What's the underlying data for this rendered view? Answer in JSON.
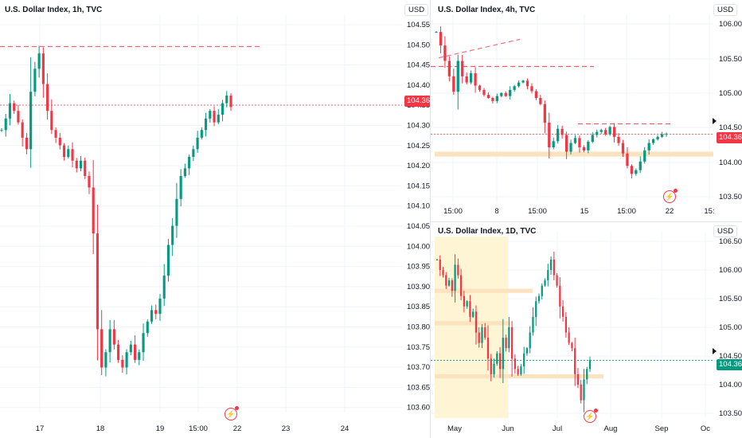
{
  "colors": {
    "up": "#089981",
    "down": "#f23645",
    "grid": "#f0f3fa",
    "zone": "#fbe3bf",
    "zone_light": "#fdf5d4",
    "level": "#f23645"
  },
  "panes": {
    "left": {
      "title": "U.S. Dollar Index, 1h, TVC",
      "y_labels": [
        "104.550",
        "104.500",
        "104.450",
        "104.400",
        "104.350",
        "104.300",
        "104.250",
        "104.200",
        "104.150",
        "104.100",
        "104.050",
        "104.000",
        "103.950",
        "103.900",
        "103.850",
        "103.800",
        "103.750",
        "103.700",
        "103.650",
        "103.600"
      ],
      "x_labels": [
        "17",
        "18",
        "19",
        "15:00",
        "22",
        "23",
        "24"
      ],
      "current_price": "104.365"
    },
    "top_right": {
      "title": "U.S. Dollar Index, 4h, TVC",
      "currency": "USD",
      "y_labels": [
        "106.000",
        "105.500",
        "105.000",
        "104.500",
        "104.000",
        "103.500"
      ],
      "x_labels": [
        "15:00",
        "8",
        "15:00",
        "15",
        "15:00",
        "22",
        "15:"
      ],
      "current_price": "104.365"
    },
    "bottom_right": {
      "title": "U.S. Dollar Index, 1D, TVC",
      "currency": "USD",
      "y_labels": [
        "106.500",
        "106.000",
        "105.500",
        "105.000",
        "104.500",
        "104.000",
        "103.500"
      ],
      "x_labels": [
        "May",
        "Jun",
        "Jul",
        "Aug",
        "Sep",
        "Oc"
      ],
      "current_price": "104.365"
    }
  },
  "chart_data": [
    {
      "type": "candlestick",
      "title": "U.S. Dollar Index, 1h, TVC",
      "ylim": [
        103.575,
        104.575
      ],
      "current_price": 104.365,
      "levels": [
        104.518
      ],
      "close": [
        104.3,
        104.33,
        104.37,
        104.35,
        104.32,
        104.28,
        104.25,
        104.4,
        104.46,
        104.5,
        104.42,
        104.35,
        104.3,
        104.28,
        104.26,
        104.23,
        104.25,
        104.22,
        104.2,
        104.22,
        104.18,
        104.15,
        104.03,
        103.78,
        103.68,
        103.72,
        103.78,
        103.74,
        103.7,
        103.68,
        103.72,
        103.74,
        103.7,
        103.72,
        103.77,
        103.8,
        103.83,
        103.82,
        103.86,
        103.92,
        104.0,
        104.05,
        104.12,
        104.18,
        104.2,
        104.23,
        104.25,
        104.28,
        104.3,
        104.33,
        104.35,
        104.32,
        104.34,
        104.37,
        104.39,
        104.36
      ]
    },
    {
      "type": "candlestick",
      "title": "U.S. Dollar Index, 4h, TVC",
      "ylim": [
        103.35,
        106.15
      ],
      "current_price": 104.365,
      "levels": [
        105.46,
        104.53
      ],
      "zones": [
        [
          104.0,
          104.08
        ]
      ],
      "close": [
        106.02,
        105.8,
        105.55,
        105.3,
        105.05,
        105.55,
        105.3,
        105.2,
        105.35,
        105.15,
        105.08,
        105.0,
        104.95,
        104.9,
        104.98,
        105.03,
        104.98,
        105.08,
        105.14,
        105.2,
        105.23,
        105.14,
        105.06,
        104.95,
        104.85,
        104.55,
        104.15,
        104.25,
        104.45,
        104.35,
        104.08,
        104.22,
        104.3,
        104.15,
        104.1,
        104.24,
        104.35,
        104.4,
        104.43,
        104.36,
        104.48,
        104.32,
        104.22,
        104.05,
        103.85,
        103.72,
        103.78,
        103.92,
        104.1,
        104.22,
        104.28,
        104.32,
        104.36,
        104.37
      ]
    },
    {
      "type": "candlestick",
      "title": "U.S. Dollar Index, 1D, TVC",
      "ylim": [
        103.35,
        106.65
      ],
      "current_price": 104.365,
      "zones": [
        [
          105.66,
          105.74
        ],
        [
          105.04,
          105.12
        ],
        [
          104.02,
          104.1
        ]
      ],
      "close": [
        106.3,
        106.1,
        106.0,
        105.8,
        105.9,
        105.7,
        106.2,
        106.0,
        105.6,
        105.4,
        105.5,
        105.2,
        105.3,
        104.9,
        104.7,
        105.0,
        104.8,
        104.4,
        104.1,
        104.3,
        104.5,
        104.2,
        104.8,
        104.6,
        105.0,
        104.4,
        104.2,
        104.1,
        104.25,
        104.5,
        104.6,
        104.9,
        105.2,
        105.5,
        105.6,
        105.8,
        105.9,
        106.1,
        106.3,
        106.0,
        105.8,
        105.4,
        105.2,
        104.9,
        104.7,
        104.6,
        104.1,
        103.9,
        103.6,
        104.0,
        104.2,
        104.37
      ]
    }
  ]
}
